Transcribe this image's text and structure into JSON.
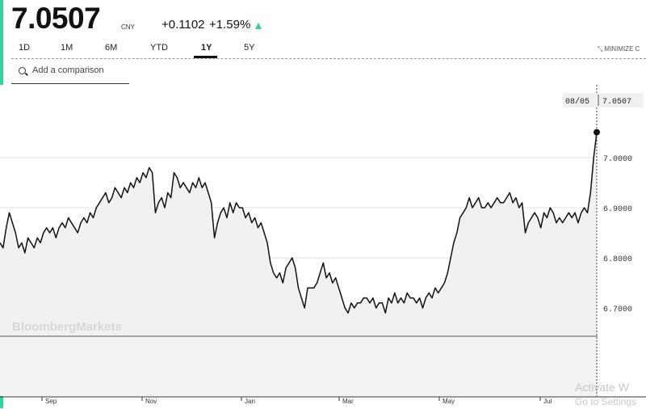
{
  "quote": {
    "price": "7.0507",
    "currency": "CNY",
    "change": "+0.1102",
    "change_pct": "+1.59%"
  },
  "tabs": [
    {
      "label": "1D"
    },
    {
      "label": "1M"
    },
    {
      "label": "6M"
    },
    {
      "label": "YTD"
    },
    {
      "label": "1Y",
      "active": true
    },
    {
      "label": "5Y"
    }
  ],
  "minimize_label": "MINIMIZE C",
  "comparison": {
    "placeholder": "Add a comparison"
  },
  "brand_watermark": "BloombergMarkets",
  "windows_watermark": {
    "line1": "Activate W",
    "line2": "Go to Settings"
  },
  "colors": {
    "accent": "#2fd3a0",
    "line": "#111111",
    "area": "#f1f1f1",
    "grid": "#e2e2e2"
  },
  "chart_data": {
    "type": "area",
    "x_ticks": [
      "Sep",
      "Nov",
      "Jan",
      "Mar",
      "May",
      "Jul"
    ],
    "y_ticks": [
      "7.0000",
      "6.9000",
      "6.8000",
      "6.7000"
    ],
    "ylim": [
      6.575,
      7.05
    ],
    "crosshair_label": {
      "date": "08/05",
      "value": "7.0507"
    },
    "last_point": 7.0507,
    "values": [
      6.83,
      6.82,
      6.86,
      6.89,
      6.87,
      6.85,
      6.82,
      6.83,
      6.81,
      6.84,
      6.83,
      6.82,
      6.84,
      6.83,
      6.85,
      6.86,
      6.85,
      6.86,
      6.84,
      6.86,
      6.87,
      6.86,
      6.88,
      6.87,
      6.86,
      6.85,
      6.87,
      6.88,
      6.87,
      6.89,
      6.88,
      6.9,
      6.91,
      6.92,
      6.93,
      6.91,
      6.92,
      6.94,
      6.93,
      6.92,
      6.94,
      6.93,
      6.95,
      6.94,
      6.96,
      6.95,
      6.97,
      6.96,
      6.98,
      6.97,
      6.89,
      6.91,
      6.92,
      6.9,
      6.93,
      6.92,
      6.97,
      6.96,
      6.94,
      6.95,
      6.94,
      6.93,
      6.95,
      6.94,
      6.96,
      6.94,
      6.95,
      6.93,
      6.91,
      6.84,
      6.87,
      6.89,
      6.9,
      6.88,
      6.91,
      6.89,
      6.91,
      6.9,
      6.9,
      6.88,
      6.89,
      6.87,
      6.88,
      6.86,
      6.87,
      6.85,
      6.83,
      6.79,
      6.77,
      6.76,
      6.77,
      6.75,
      6.78,
      6.79,
      6.8,
      6.78,
      6.74,
      6.72,
      6.7,
      6.74,
      6.74,
      6.74,
      6.75,
      6.77,
      6.79,
      6.76,
      6.77,
      6.75,
      6.76,
      6.74,
      6.72,
      6.7,
      6.69,
      6.71,
      6.7,
      6.71,
      6.71,
      6.72,
      6.72,
      6.71,
      6.72,
      6.7,
      6.71,
      6.71,
      6.69,
      6.72,
      6.71,
      6.73,
      6.71,
      6.72,
      6.71,
      6.73,
      6.72,
      6.72,
      6.71,
      6.72,
      6.7,
      6.72,
      6.73,
      6.72,
      6.74,
      6.73,
      6.74,
      6.75,
      6.77,
      6.8,
      6.83,
      6.85,
      6.88,
      6.89,
      6.9,
      6.92,
      6.9,
      6.91,
      6.92,
      6.9,
      6.9,
      6.91,
      6.9,
      6.91,
      6.92,
      6.91,
      6.91,
      6.92,
      6.93,
      6.91,
      6.92,
      6.9,
      6.91,
      6.85,
      6.87,
      6.88,
      6.89,
      6.88,
      6.86,
      6.89,
      6.88,
      6.9,
      6.89,
      6.87,
      6.88,
      6.87,
      6.88,
      6.89,
      6.88,
      6.89,
      6.87,
      6.89,
      6.9,
      6.89,
      6.93,
      7.0,
      7.0507
    ]
  }
}
